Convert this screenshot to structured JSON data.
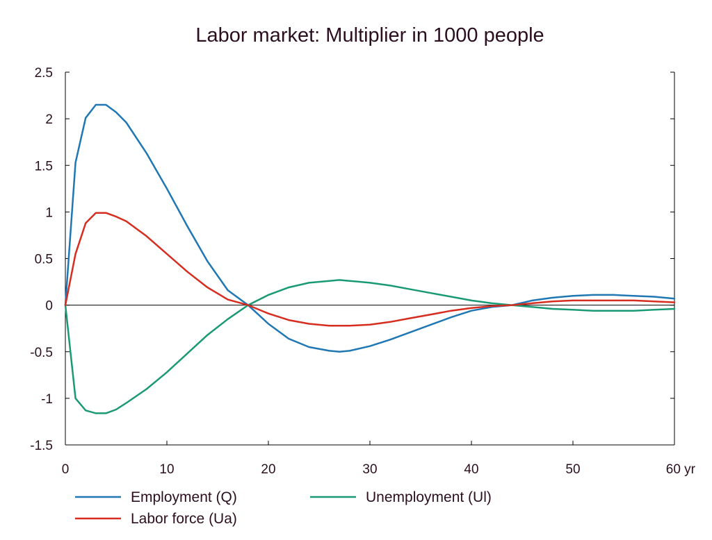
{
  "chart_data": {
    "type": "line",
    "title": "Labor market: Multiplier in 1000 people",
    "xlabel": "",
    "ylabel": "",
    "xlim": [
      0,
      60
    ],
    "ylim": [
      -1.5,
      2.5
    ],
    "x_ticks": [
      "0",
      "10",
      "20",
      "30",
      "40",
      "50",
      "60 yr"
    ],
    "x_tick_values": [
      0,
      10,
      20,
      30,
      40,
      50,
      60
    ],
    "y_ticks": [
      "2.5",
      "2",
      "1.5",
      "1",
      "0.5",
      "0",
      "-0.5",
      "-1",
      "-1.5"
    ],
    "y_tick_values": [
      2.5,
      2,
      1.5,
      1,
      0.5,
      0,
      -0.5,
      -1,
      -1.5
    ],
    "grid": false,
    "legend": "bottom",
    "series": [
      {
        "name": "Employment (Q)",
        "color": "#1f77b4",
        "x": [
          0,
          1,
          2,
          3,
          4,
          5,
          6,
          8,
          10,
          12,
          14,
          16,
          18,
          20,
          22,
          24,
          26,
          27,
          28,
          30,
          32,
          34,
          36,
          38,
          40,
          42,
          44,
          46,
          48,
          50,
          52,
          53,
          54,
          56,
          58,
          60
        ],
        "y": [
          0,
          1.53,
          2.01,
          2.15,
          2.15,
          2.07,
          1.96,
          1.63,
          1.25,
          0.85,
          0.47,
          0.16,
          0.0,
          -0.2,
          -0.36,
          -0.45,
          -0.49,
          -0.5,
          -0.49,
          -0.44,
          -0.37,
          -0.29,
          -0.21,
          -0.13,
          -0.06,
          -0.02,
          0.0,
          0.05,
          0.08,
          0.1,
          0.11,
          0.11,
          0.11,
          0.1,
          0.09,
          0.07
        ]
      },
      {
        "name": "Unemployment (Ul)",
        "color": "#1a9a74",
        "x": [
          0,
          1,
          2,
          3,
          4,
          5,
          6,
          8,
          10,
          12,
          14,
          16,
          18,
          20,
          22,
          24,
          26,
          27,
          28,
          30,
          32,
          34,
          36,
          38,
          40,
          42,
          44,
          46,
          48,
          50,
          52,
          54,
          56,
          58,
          60
        ],
        "y": [
          0,
          -1.0,
          -1.13,
          -1.16,
          -1.16,
          -1.12,
          -1.05,
          -0.9,
          -0.72,
          -0.52,
          -0.32,
          -0.15,
          0.0,
          0.11,
          0.19,
          0.24,
          0.26,
          0.27,
          0.26,
          0.24,
          0.21,
          0.17,
          0.13,
          0.09,
          0.05,
          0.02,
          0.0,
          -0.02,
          -0.04,
          -0.05,
          -0.06,
          -0.06,
          -0.06,
          -0.05,
          -0.04
        ]
      },
      {
        "name": "Labor force (Ua)",
        "color": "#d62d20",
        "x": [
          0,
          1,
          2,
          3,
          4,
          5,
          6,
          8,
          10,
          12,
          14,
          16,
          18,
          20,
          22,
          24,
          26,
          27,
          28,
          30,
          32,
          34,
          36,
          38,
          40,
          42,
          44,
          46,
          48,
          50,
          52,
          54,
          56,
          58,
          60
        ],
        "y": [
          0,
          0.55,
          0.88,
          0.99,
          0.99,
          0.95,
          0.9,
          0.74,
          0.55,
          0.36,
          0.19,
          0.06,
          0.0,
          -0.09,
          -0.16,
          -0.2,
          -0.22,
          -0.22,
          -0.22,
          -0.21,
          -0.18,
          -0.14,
          -0.1,
          -0.06,
          -0.03,
          -0.01,
          0.0,
          0.02,
          0.04,
          0.05,
          0.05,
          0.05,
          0.05,
          0.04,
          0.03
        ]
      }
    ]
  }
}
